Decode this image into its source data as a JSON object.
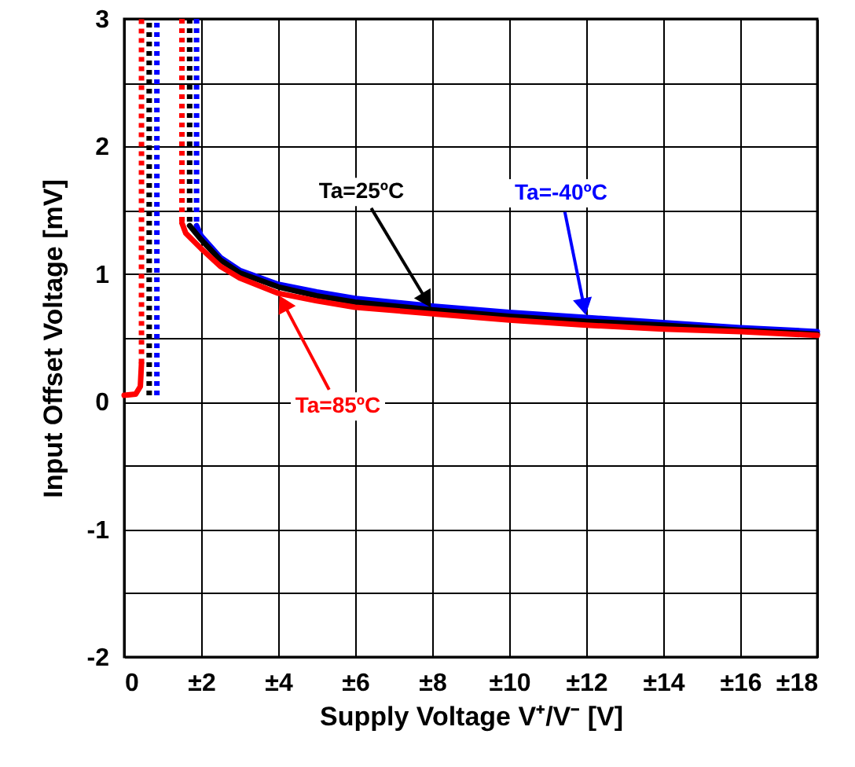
{
  "chart_data": {
    "type": "line",
    "xlabel": "Supply Voltage V⁺/V⁻ [V]",
    "ylabel": "Input Offset Voltage [mV]",
    "xlim": [
      0,
      18
    ],
    "ylim": [
      -2,
      3
    ],
    "xticks": [
      0,
      {
        "value": 2,
        "label": "±2"
      },
      {
        "value": 4,
        "label": "±4"
      },
      {
        "value": 6,
        "label": "±6"
      },
      {
        "value": 8,
        "label": "±8"
      },
      {
        "value": 10,
        "label": "±10"
      },
      {
        "value": 12,
        "label": "±12"
      },
      {
        "value": 14,
        "label": "±14"
      },
      {
        "value": 16,
        "label": "±16"
      },
      {
        "value": 18,
        "label": "±18"
      }
    ],
    "yticks": [
      -2,
      {
        "value": -1.5,
        "label": null
      },
      -1,
      {
        "value": -0.5,
        "label": null
      },
      0,
      {
        "value": 0.5,
        "label": null
      },
      1,
      {
        "value": 1.5,
        "label": null
      },
      2,
      {
        "value": 2.5,
        "label": null
      },
      3
    ],
    "grid": true,
    "marker": "none",
    "series": [
      {
        "color": "#0000ff",
        "line_style": "dotted",
        "x": [
          0.85,
          0.85,
          1.3,
          1.88,
          1.88
        ],
        "values": [
          0.05,
          3,
          null,
          3,
          1.38
        ]
      },
      {
        "color": "#000000",
        "line_style": "dotted",
        "x": [
          0.65,
          0.65,
          1.2,
          1.7,
          1.7
        ],
        "values": [
          0.05,
          3,
          null,
          3,
          1.38
        ]
      },
      {
        "color": "#ff0000",
        "line_style": "dotted",
        "x": [
          0.45,
          0.45,
          1.0,
          1.5,
          1.5
        ],
        "values": [
          0.3,
          3,
          null,
          3,
          1.4
        ]
      },
      {
        "name": "Ta=-40ºC",
        "color": "#0000ff",
        "line_style": "solid",
        "x": [
          1.88,
          2,
          2.5,
          3,
          4,
          5,
          6,
          8,
          10,
          12,
          14,
          16,
          18
        ],
        "values": [
          1.38,
          1.3,
          1.13,
          1.03,
          0.92,
          0.86,
          0.81,
          0.75,
          0.7,
          0.66,
          0.62,
          0.58,
          0.55
        ]
      },
      {
        "name": "Ta=25ºC",
        "color": "#000000",
        "line_style": "solid",
        "x": [
          1.7,
          2,
          2.5,
          3,
          4,
          5,
          6,
          8,
          10,
          12,
          14,
          16,
          18
        ],
        "values": [
          1.38,
          1.27,
          1.11,
          1.01,
          0.9,
          0.83,
          0.78,
          0.72,
          0.67,
          0.63,
          0.6,
          0.56,
          0.53
        ]
      },
      {
        "name": "Ta=85ºC",
        "color": "#ff0000",
        "line_style": "solid",
        "x": [
          0,
          0.3,
          0.42,
          0.45,
          1.0,
          1.5,
          1.6,
          2,
          2.5,
          3,
          4,
          5,
          6,
          8,
          10,
          12,
          14,
          16,
          18
        ],
        "values": [
          0.05,
          0.06,
          0.12,
          0.3,
          null,
          1.4,
          1.32,
          1.2,
          1.06,
          0.97,
          0.85,
          0.79,
          0.74,
          0.69,
          0.64,
          0.6,
          0.57,
          0.55,
          0.52
        ]
      }
    ]
  }
}
